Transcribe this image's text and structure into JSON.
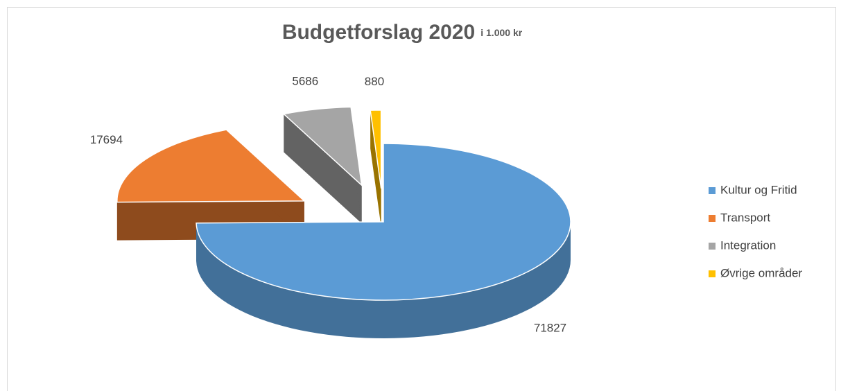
{
  "chart_data": {
    "type": "pie3d",
    "title": "Budgetforslag 2020",
    "subtitle": "i 1.000 kr",
    "categories": [
      "Kultur og Fritid",
      "Transport",
      "Integration",
      "Øvrige områder"
    ],
    "values": [
      71827,
      17694,
      5686,
      880
    ],
    "colors": [
      "#5b9bd5",
      "#ed7d31",
      "#a5a5a5",
      "#ffc000"
    ],
    "legend": "right"
  }
}
